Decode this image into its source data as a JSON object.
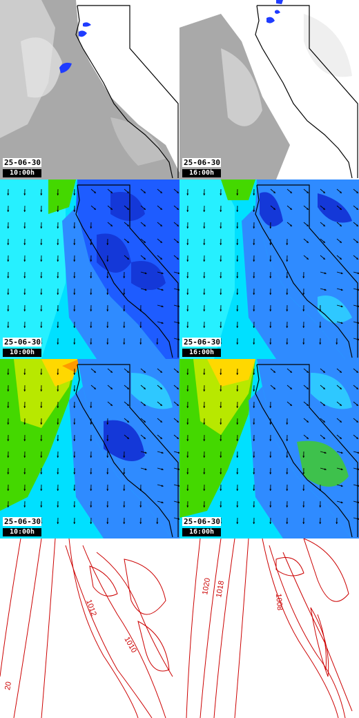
{
  "rows": [
    {
      "kind": "cloud-precip",
      "panels": [
        {
          "date": "25-06-30",
          "time": "10:00h"
        },
        {
          "date": "25-06-30",
          "time": "16:00h"
        }
      ]
    },
    {
      "kind": "wind-speed-low",
      "panels": [
        {
          "date": "25-06-30",
          "time": "10:00h"
        },
        {
          "date": "25-06-30",
          "time": "16:00h"
        }
      ]
    },
    {
      "kind": "wind-speed-high",
      "panels": [
        {
          "date": "25-06-30",
          "time": "10:00h"
        },
        {
          "date": "25-06-30",
          "time": "16:00h"
        }
      ]
    },
    {
      "kind": "sea-level-pressure",
      "panels": [
        {
          "labels": [
            "1012",
            "1010",
            "20"
          ]
        },
        {
          "labels": [
            "1020",
            "1018",
            "1008"
          ]
        }
      ]
    }
  ],
  "colors": {
    "cloud": "#9a9a9a",
    "precip": "#1f3cff",
    "border": "#000000",
    "isobar": "#cc0000",
    "wind_calm": "#00e0ff",
    "wind_mid": "#2f8bff",
    "wind_low": "#1438d8",
    "wind_high": "#ffd800",
    "wind_green": "#44d800"
  }
}
